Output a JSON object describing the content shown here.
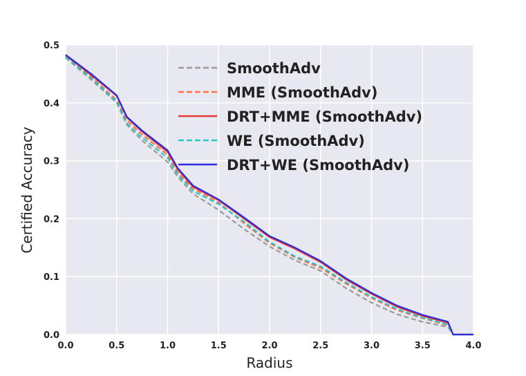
{
  "chart_data": {
    "type": "line",
    "title": "",
    "xlabel": "Radius",
    "ylabel": "Certified Accuracy",
    "xlim": [
      0.0,
      4.0
    ],
    "ylim": [
      0.0,
      0.5
    ],
    "xticks": [
      "0.0",
      "0.5",
      "1.0",
      "1.5",
      "2.0",
      "2.5",
      "3.0",
      "3.5",
      "4.0"
    ],
    "yticks": [
      "0.0",
      "0.1",
      "0.2",
      "0.3",
      "0.4",
      "0.5"
    ],
    "grid": true,
    "legend_position": "top-center",
    "background_color": "#e8e8f0",
    "x": [
      0.0,
      0.25,
      0.5,
      0.6,
      0.75,
      1.0,
      1.1,
      1.25,
      1.5,
      1.75,
      2.0,
      2.25,
      2.5,
      2.75,
      3.0,
      3.25,
      3.5,
      3.75,
      3.8,
      4.0
    ],
    "series": [
      {
        "name": "SmoothAdv",
        "color": "#999999",
        "dash": "dashed",
        "values": [
          0.478,
          0.44,
          0.4,
          0.362,
          0.335,
          0.298,
          0.272,
          0.243,
          0.215,
          0.182,
          0.152,
          0.128,
          0.11,
          0.08,
          0.055,
          0.035,
          0.022,
          0.013,
          0.0,
          0.0
        ]
      },
      {
        "name": "MME (SmoothAdv)",
        "color": "#ff7043",
        "dash": "dashed",
        "values": [
          0.48,
          0.445,
          0.405,
          0.37,
          0.345,
          0.31,
          0.28,
          0.252,
          0.228,
          0.192,
          0.158,
          0.133,
          0.115,
          0.088,
          0.063,
          0.042,
          0.028,
          0.016,
          0.0,
          0.0
        ]
      },
      {
        "name": "DRT+MME (SmoothAdv)",
        "color": "#e53935",
        "dash": "solid",
        "values": [
          0.482,
          0.448,
          0.412,
          0.375,
          0.35,
          0.315,
          0.285,
          0.255,
          0.232,
          0.2,
          0.168,
          0.148,
          0.125,
          0.095,
          0.07,
          0.048,
          0.032,
          0.02,
          0.0,
          0.0
        ]
      },
      {
        "name": "WE (SmoothAdv)",
        "color": "#26c6c6",
        "dash": "dashed",
        "values": [
          0.479,
          0.443,
          0.402,
          0.365,
          0.34,
          0.305,
          0.276,
          0.248,
          0.225,
          0.195,
          0.16,
          0.135,
          0.118,
          0.09,
          0.065,
          0.044,
          0.029,
          0.017,
          0.0,
          0.0
        ]
      },
      {
        "name": "DRT+WE (SmoothAdv)",
        "color": "#2c2cdf",
        "dash": "solid",
        "values": [
          0.483,
          0.45,
          0.413,
          0.376,
          0.352,
          0.318,
          0.287,
          0.257,
          0.233,
          0.202,
          0.17,
          0.15,
          0.127,
          0.097,
          0.072,
          0.05,
          0.034,
          0.022,
          0.0,
          0.0
        ]
      }
    ]
  }
}
